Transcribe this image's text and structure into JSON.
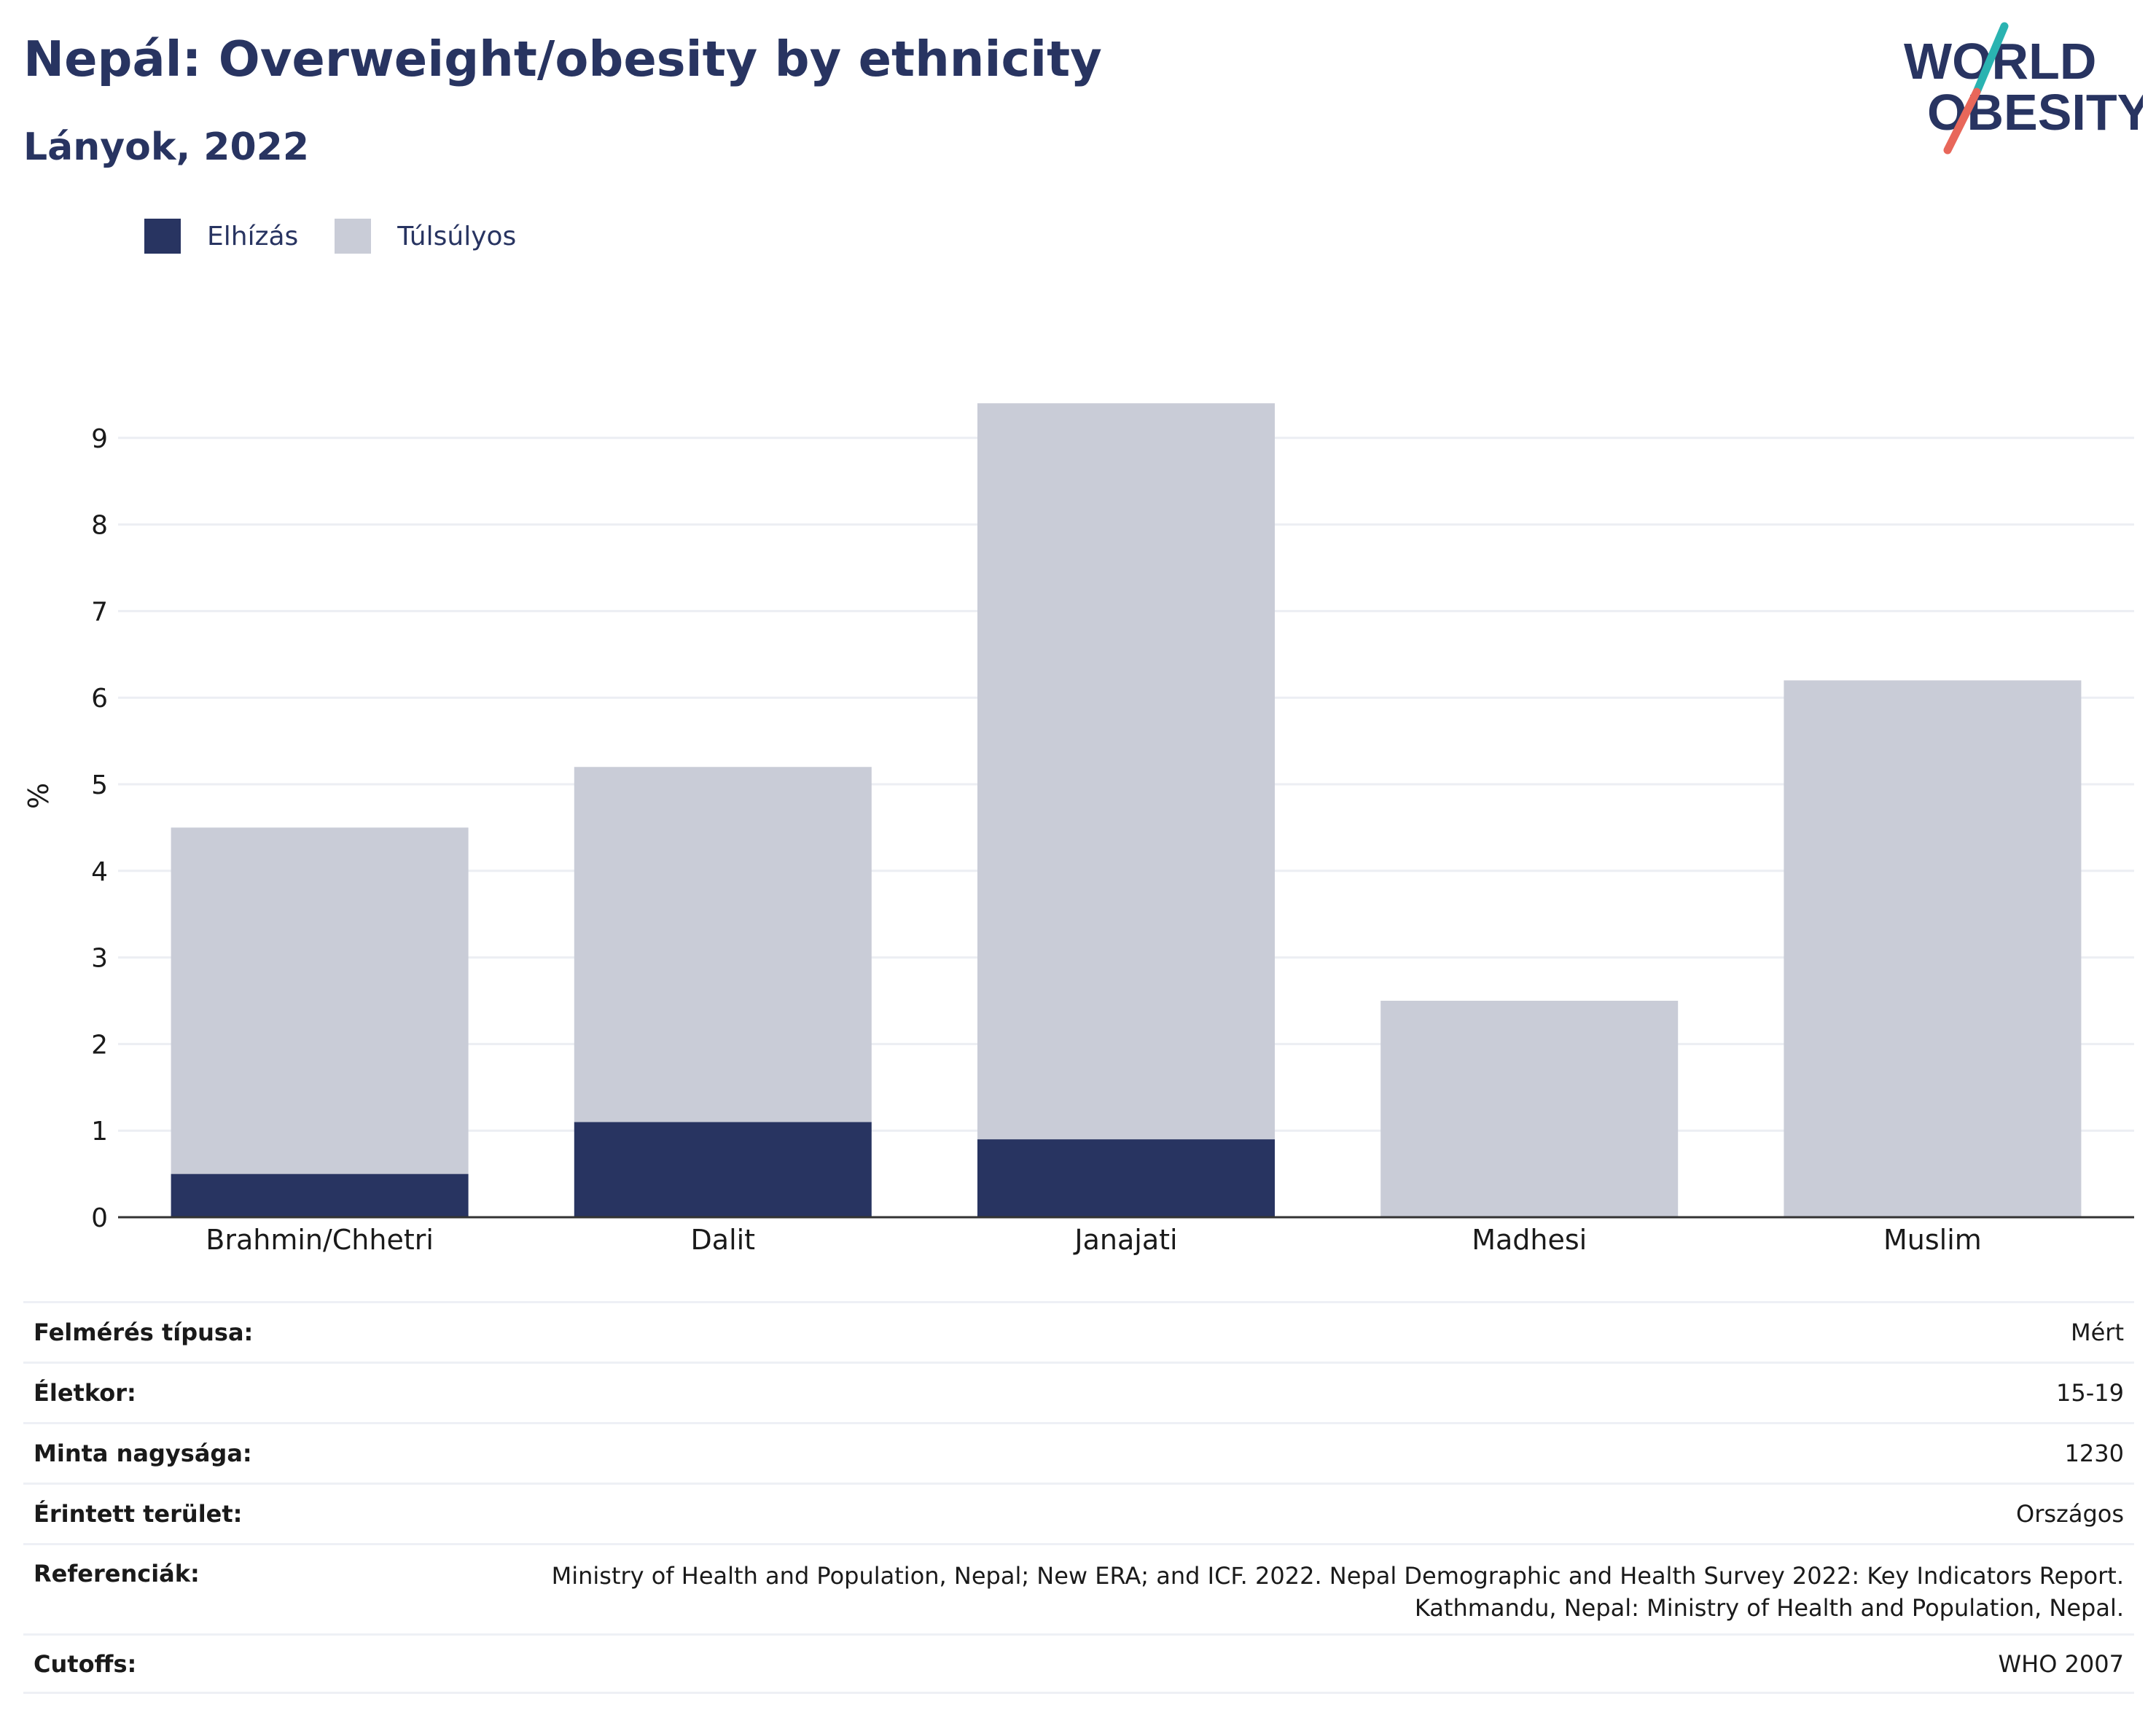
{
  "header": {
    "title": "Nepál: Overweight/obesity by ethnicity",
    "subtitle": "Lányok, 2022"
  },
  "logo": {
    "line1": "WORLD",
    "line2": "OBESITY",
    "accent_teal": "#2ab3b1",
    "accent_coral": "#e8675a"
  },
  "legend": [
    {
      "label": "Elhízás",
      "color": "#283461"
    },
    {
      "label": "Túlsúlyos",
      "color": "#c9ccd7"
    }
  ],
  "chart_data": {
    "type": "bar",
    "stacked": true,
    "categories": [
      "Brahmin/Chhetri",
      "Dalit",
      "Janajati",
      "Madhesi",
      "Muslim"
    ],
    "series": [
      {
        "name": "Elhízás",
        "color": "#283461",
        "values": [
          0.5,
          1.1,
          0.9,
          0,
          0
        ]
      },
      {
        "name": "Túlsúlyos",
        "color": "#c9ccd7",
        "values": [
          4.0,
          4.1,
          8.5,
          2.5,
          6.2
        ]
      }
    ],
    "totals": [
      4.5,
      5.2,
      9.4,
      2.5,
      6.2
    ],
    "ylabel": "%",
    "yticks": [
      "0",
      "1",
      "2",
      "3",
      "4",
      "5",
      "6",
      "7",
      "8",
      "9"
    ],
    "ylim": [
      0,
      9.8
    ],
    "grid": true,
    "legend_position": "top-left"
  },
  "meta": {
    "survey_type": {
      "label": "Felmérés típusa:",
      "value": "Mért"
    },
    "age": {
      "label": "Életkor:",
      "value": "15-19"
    },
    "sample_size": {
      "label": "Minta nagysága:",
      "value": "1230"
    },
    "area": {
      "label": "Érintett terület:",
      "value": "Országos"
    },
    "references": {
      "label": "Referenciák:",
      "line1": "Ministry of Health and Population, Nepal; New ERA; and ICF. 2022. Nepal Demographic and Health Survey 2022: Key Indicators Report.",
      "line2": "Kathmandu, Nepal: Ministry of Health and Population, Nepal."
    },
    "cutoffs": {
      "label": "Cutoffs:",
      "value": "WHO 2007"
    }
  }
}
